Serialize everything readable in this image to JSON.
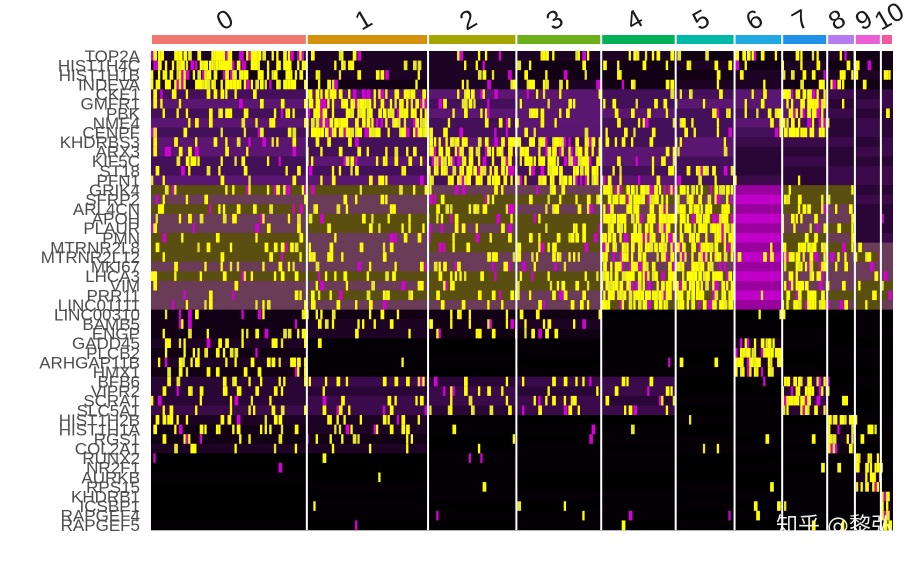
{
  "chart_data": {
    "type": "heatmap",
    "title": "",
    "xlabel": "",
    "ylabel": "",
    "clusters": [
      {
        "label": "0",
        "color": "#f0776e",
        "cells": 180
      },
      {
        "label": "1",
        "color": "#d4920a",
        "cells": 140
      },
      {
        "label": "2",
        "color": "#a3a500",
        "cells": 102
      },
      {
        "label": "3",
        "color": "#6cb11b",
        "cells": 98
      },
      {
        "label": "4",
        "color": "#00b157",
        "cells": 86
      },
      {
        "label": "5",
        "color": "#00b8a6",
        "cells": 68
      },
      {
        "label": "6",
        "color": "#1fa9e0",
        "cells": 55
      },
      {
        "label": "7",
        "color": "#1f91e8",
        "cells": 52
      },
      {
        "label": "8",
        "color": "#b57cf0",
        "cells": 32
      },
      {
        "label": "9",
        "color": "#ea5fd8",
        "cells": 30
      },
      {
        "label": "10",
        "color": "#f5579c",
        "cells": 14
      }
    ],
    "genes": [
      "TOP2A",
      "HIST1H4C",
      "HIST1H1B",
      "INDEVA",
      "CKE1",
      "GMFR1",
      "PBK",
      "NME4",
      "CENPF",
      "KHDRBS3",
      "ARX3",
      "KIF5C",
      "ST18",
      "PFN1",
      "GRIK4",
      "SFRP2",
      "ARL4CN",
      "APOH",
      "PLAUR",
      "PMN",
      "MTRNR2L8",
      "MTRNR2L12",
      "MKI67",
      "LHCA3",
      "VIM",
      "PRR11",
      "LINC01111",
      "LINC00310",
      "BAMB5",
      "ENGP",
      "GADD45",
      "PLCB2",
      "ARHGAP11B",
      "HMX1",
      "BFB6",
      "VIPR2",
      "SCRA1",
      "SLC5A1",
      "HIST1H2B",
      "HIST1H1A",
      "RGS1",
      "COL2A1",
      "RUNX2",
      "NR2F1",
      "AURKB",
      "RPS15",
      "KHDRB1",
      "ICSBP1",
      "RAPGEF4",
      "RAPGEF5"
    ],
    "color_scale": {
      "low": "#000000",
      "mid": "#ff00ff",
      "high": "#ffff00"
    },
    "value_range": [
      -2.5,
      2.5
    ],
    "legend": "none"
  },
  "watermark": "知乎 @黎弘"
}
